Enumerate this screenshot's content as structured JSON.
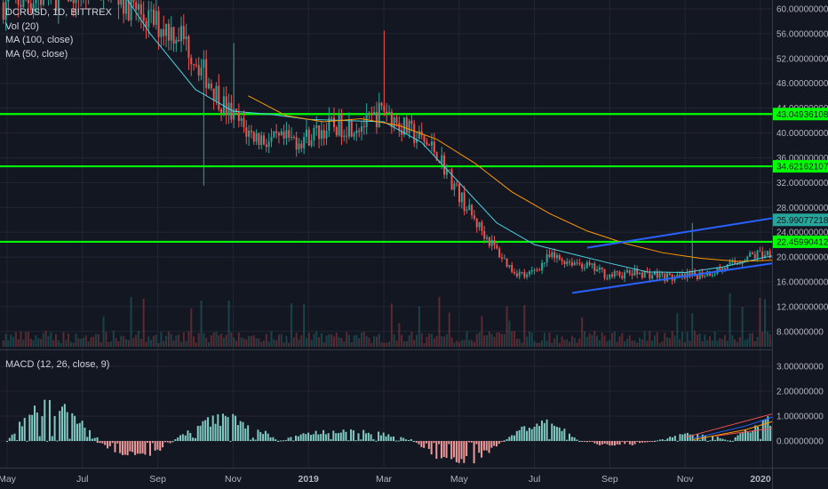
{
  "legend": {
    "symbol": "DCRUSD, 1D, BITTREX",
    "volume": "Vol (20)",
    "ma100": "MA (100, close)",
    "ma50": "MA (50, close)",
    "macd": "MACD (12, 26, close, 9)"
  },
  "colors": {
    "background": "#131722",
    "grid": "#232632",
    "up": "#26a69a",
    "down": "#ef5350",
    "level": "#00ff00",
    "channel": "#2962ff",
    "projection": "#c25b9b",
    "ma50": "#4dd0e1",
    "ma100": "#ff9800",
    "axis_text": "#b2b5be"
  },
  "chart_data": [
    {
      "type": "candlestick",
      "name": "DCRUSD, 1D, BITTREX",
      "x_axis_labels": [
        "May",
        "Jul",
        "Sep",
        "Nov",
        "2019",
        "Mar",
        "May",
        "Jul",
        "Sep",
        "Nov",
        "2020"
      ],
      "y_axis_labels": [
        "60.00000000",
        "56.00000000",
        "52.00000000",
        "48.00000000",
        "44.00000000",
        "40.00000000",
        "36.00000000",
        "32.00000000",
        "28.00000000",
        "24.00000000",
        "20.00000000",
        "16.00000000",
        "12.00000000",
        "8.00000000"
      ],
      "ylim": [
        6,
        61.5
      ],
      "horizontal_levels": [
        {
          "value": 43.04936108,
          "label": "43.04936108"
        },
        {
          "value": 34.62162107,
          "label": "34.62162107"
        },
        {
          "value": 22.45990412,
          "label": "22.45990412"
        }
      ],
      "last_price": {
        "value": 25.99077218,
        "label": "25.99077218"
      },
      "price_path": [
        [
          0,
          61
        ],
        [
          1.3,
          64
        ],
        [
          1.9,
          58
        ],
        [
          2.3,
          56
        ],
        [
          2.9,
          44
        ],
        [
          3.2,
          40
        ],
        [
          3.5,
          38.5
        ],
        [
          3.9,
          39
        ],
        [
          4.3,
          41
        ],
        [
          4.8,
          41.5
        ],
        [
          5.0,
          44
        ],
        [
          5.2,
          41.5
        ],
        [
          5.7,
          37
        ],
        [
          6.0,
          30
        ],
        [
          6.2,
          26
        ],
        [
          6.5,
          21
        ],
        [
          6.7,
          18
        ],
        [
          6.9,
          16.8
        ],
        [
          7.2,
          20
        ],
        [
          7.6,
          19
        ],
        [
          8.0,
          17
        ],
        [
          8.4,
          17.5
        ],
        [
          8.9,
          16.5
        ],
        [
          9.3,
          17.5
        ],
        [
          9.6,
          18.5
        ],
        [
          9.8,
          20
        ],
        [
          10.2,
          21
        ],
        [
          10.5,
          23
        ],
        [
          10.8,
          25
        ],
        [
          11.0,
          25.5
        ]
      ],
      "spike_events": [
        [
          3.0,
          54.5
        ],
        [
          5.0,
          56.5
        ],
        [
          9.1,
          25.5
        ]
      ],
      "ma50_path": [
        [
          1.35,
          66
        ],
        [
          1.9,
          56
        ],
        [
          2.5,
          47
        ],
        [
          3.0,
          43.5
        ],
        [
          3.5,
          43
        ],
        [
          4.0,
          42.2
        ],
        [
          4.5,
          42
        ],
        [
          5.0,
          41.8
        ],
        [
          5.5,
          38.5
        ],
        [
          6.0,
          32
        ],
        [
          6.5,
          25.5
        ],
        [
          7.0,
          22
        ],
        [
          7.5,
          20.5
        ],
        [
          8.0,
          19
        ],
        [
          8.5,
          17.6
        ],
        [
          9.0,
          17.5
        ],
        [
          9.5,
          18.4
        ],
        [
          10.0,
          19.8
        ],
        [
          10.5,
          21
        ],
        [
          11.0,
          22.5
        ]
      ],
      "ma100_path": [
        [
          3.2,
          46
        ],
        [
          3.7,
          42.8
        ],
        [
          4.2,
          41.8
        ],
        [
          4.7,
          42.3
        ],
        [
          5.2,
          41.2
        ],
        [
          5.7,
          39
        ],
        [
          6.2,
          35.2
        ],
        [
          6.7,
          30.5
        ],
        [
          7.2,
          27
        ],
        [
          7.7,
          24.2
        ],
        [
          8.2,
          22.2
        ],
        [
          8.7,
          20.7
        ],
        [
          9.2,
          19.8
        ],
        [
          9.7,
          19.3
        ],
        [
          10.2,
          19.5
        ],
        [
          10.7,
          20.2
        ],
        [
          11.1,
          20.8
        ]
      ],
      "channel_lines": [
        {
          "from": [
            7.5,
            14.2
          ],
          "to": [
            12.5,
            23.2
          ]
        },
        {
          "from": [
            7.7,
            21.5
          ],
          "to": [
            12.5,
            30.8
          ]
        }
      ],
      "projection": [
        [
          11.1,
          25.8
        ],
        [
          12.0,
          43.5
        ],
        [
          13.0,
          35.6
        ],
        [
          14.5,
          57
        ]
      ]
    },
    {
      "type": "bar",
      "name": "MACD (12, 26, close, 9)",
      "y_axis_labels": [
        "3.00000000",
        "2.00000000",
        "1.00000000",
        "0.00000000"
      ],
      "ylim": [
        -1.0,
        3.5
      ],
      "histogram_segments": [
        [
          0.0,
          1.2,
          1.6
        ],
        [
          1.2,
          2.2,
          -0.7
        ],
        [
          2.2,
          3.6,
          1.0
        ],
        [
          3.6,
          5.4,
          0.5
        ],
        [
          5.4,
          6.6,
          -0.9
        ],
        [
          6.6,
          7.6,
          0.8
        ],
        [
          7.6,
          8.6,
          -0.2
        ],
        [
          8.6,
          9.6,
          0.3
        ],
        [
          9.6,
          11.1,
          1.0
        ]
      ],
      "macd_path": [
        [
          9.1,
          0.1
        ],
        [
          9.8,
          0.6
        ],
        [
          10.4,
          1.2
        ],
        [
          10.8,
          1.95
        ],
        [
          11.1,
          1.4
        ]
      ],
      "signal_path": [
        [
          9.1,
          0.05
        ],
        [
          9.8,
          0.45
        ],
        [
          10.4,
          1.0
        ],
        [
          10.9,
          1.6
        ],
        [
          11.1,
          1.35
        ]
      ],
      "trendlines": [
        {
          "from": [
            9.0,
            0.15
          ],
          "to": [
            13.2,
            3.55
          ]
        },
        {
          "from": [
            9.4,
            0.2
          ],
          "to": [
            13.2,
            1.75
          ]
        }
      ]
    }
  ]
}
